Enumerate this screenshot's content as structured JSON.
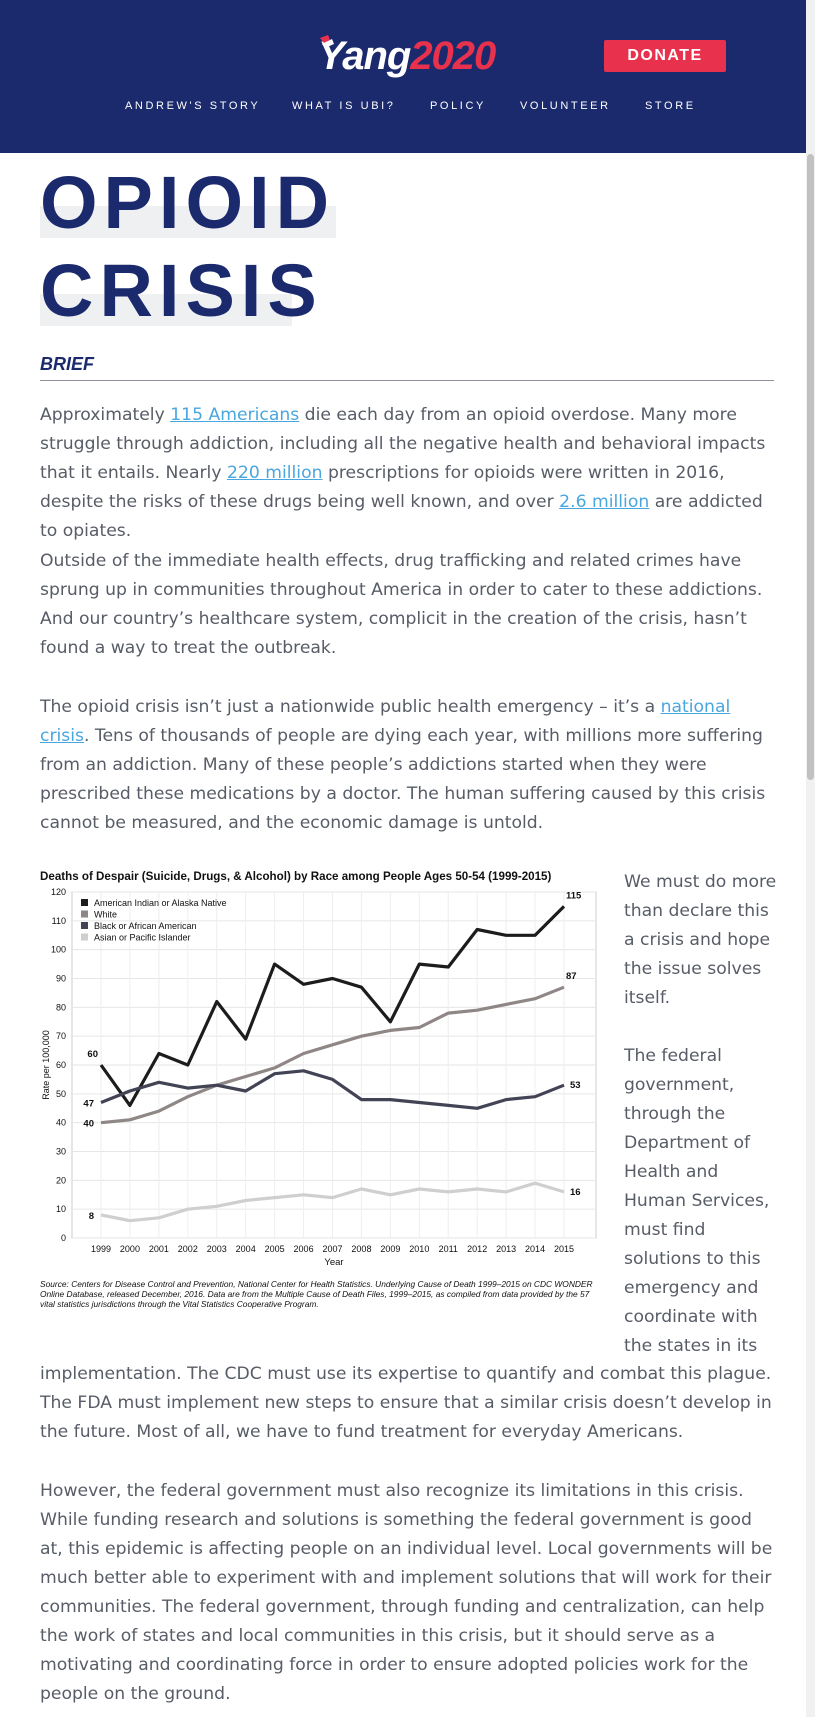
{
  "header": {
    "logo_name": "Yang",
    "logo_year": "2020",
    "donate_label": "DONATE",
    "nav": [
      "ANDREW'S STORY",
      "WHAT IS UBI?",
      "POLICY",
      "VOLUNTEER",
      "STORE"
    ]
  },
  "title": {
    "line1": "OPIOID",
    "line2": "CRISIS"
  },
  "brief_label": "BRIEF",
  "paragraphs": {
    "p1": {
      "t1": "Approximately ",
      "link1": "115 Americans",
      "t2": " die each day from an opioid overdose. Many more struggle through addiction, including all the negative health and behavioral impacts that it entails. Nearly ",
      "link2": "220 million",
      "t3": " prescriptions for opioids were written in 2016, despite the risks of these drugs being well known, and over ",
      "link3": "2.6 million",
      "t4": " are addicted to opiates."
    },
    "p2": "Outside of the immediate health effects, drug trafficking and related crimes have sprung up in communities throughout America in order to cater to these addictions. And our country’s healthcare system, complicit in the creation of the crisis, hasn’t found a way to treat the outbreak.",
    "p3": {
      "t1": "The opioid crisis isn’t just a nationwide public health emergency – it’s a ",
      "link": "national crisis",
      "t2": ". Tens of thousands of people are dying each year, with millions more suffering from an addiction. Many of these people’s addictions started when they were prescribed these medications by a doctor. The human suffering caused by this crisis cannot be measured, and the economic damage is untold."
    },
    "side1": "We must do more than declare this a crisis and hope the issue solves itself.",
    "side2": "The federal government, through the Department of Health and Human Services, must find solutions to this emergency and coordinate with the states in its",
    "p4": "implementation. The CDC must use its expertise to quantify and combat this plague. The FDA must implement new steps to ensure that a similar crisis doesn’t develop in the future. Most of all, we have to fund treatment for everyday Americans.",
    "p5": "However, the federal government must also recognize its limitations in this crisis. While funding research and solutions is something the federal government is good at, this epidemic is affecting people on an individual level. Local governments will be much better able to experiment with and implement solutions that will work for their communities. The federal government, through funding and centralization, can help the work of states and local communities in this crisis, but it should serve as a motivating and coordinating force in order to ensure adopted policies work for the people on the ground."
  },
  "colors": {
    "navy": "#1b2a6d",
    "red": "#e8314d",
    "link": "#4aa6df"
  },
  "chart_data": {
    "type": "line",
    "title": "Deaths of Despair (Suicide, Drugs, & Alcohol) by Race among People Ages 50-54 (1999-2015)",
    "xlabel": "Year",
    "ylabel": "Rate per 100,000",
    "ylim": [
      0,
      120
    ],
    "yticks": [
      0,
      10,
      20,
      30,
      40,
      50,
      60,
      70,
      80,
      90,
      100,
      110,
      120
    ],
    "grid": true,
    "legend_position": "top-left",
    "x": [
      "1999",
      "2000",
      "2001",
      "2002",
      "2003",
      "2004",
      "2005",
      "2006",
      "2007",
      "2008",
      "2009",
      "2010",
      "2011",
      "2012",
      "2013",
      "2014",
      "2015"
    ],
    "series": [
      {
        "name": "American Indian or Alaska Native",
        "color": "#1c1c1c",
        "values": [
          60,
          46,
          64,
          60,
          82,
          69,
          95,
          88,
          90,
          87,
          75,
          95,
          94,
          107,
          105,
          105,
          115
        ],
        "start_label": "60",
        "end_label": "115"
      },
      {
        "name": "White",
        "color": "#8f8785",
        "values": [
          40,
          41,
          44,
          49,
          53,
          56,
          59,
          64,
          67,
          70,
          72,
          73,
          78,
          79,
          81,
          83,
          87
        ],
        "start_label": "40",
        "end_label": "87"
      },
      {
        "name": "Black or African American",
        "color": "#434356",
        "values": [
          47,
          51,
          54,
          52,
          53,
          51,
          57,
          58,
          55,
          48,
          48,
          47,
          46,
          45,
          48,
          49,
          53
        ],
        "start_label": "47",
        "end_label": "53"
      },
      {
        "name": "Asian or Pacific Islander",
        "color": "#cfcfcf",
        "values": [
          8,
          6,
          7,
          10,
          11,
          13,
          14,
          15,
          14,
          17,
          15,
          17,
          16,
          17,
          16,
          19,
          16
        ],
        "start_label": "8",
        "end_label": "16"
      }
    ],
    "source": "Source: Centers for Disease Control and Prevention, National Center for Health Statistics. Underlying Cause of Death 1999–2015 on CDC WONDER Online Database, released December, 2016. Data are from the Multiple Cause of Death Files, 1999–2015, as compiled from data provided by the 57 vital statistics jurisdictions through the Vital Statistics Cooperative Program."
  }
}
